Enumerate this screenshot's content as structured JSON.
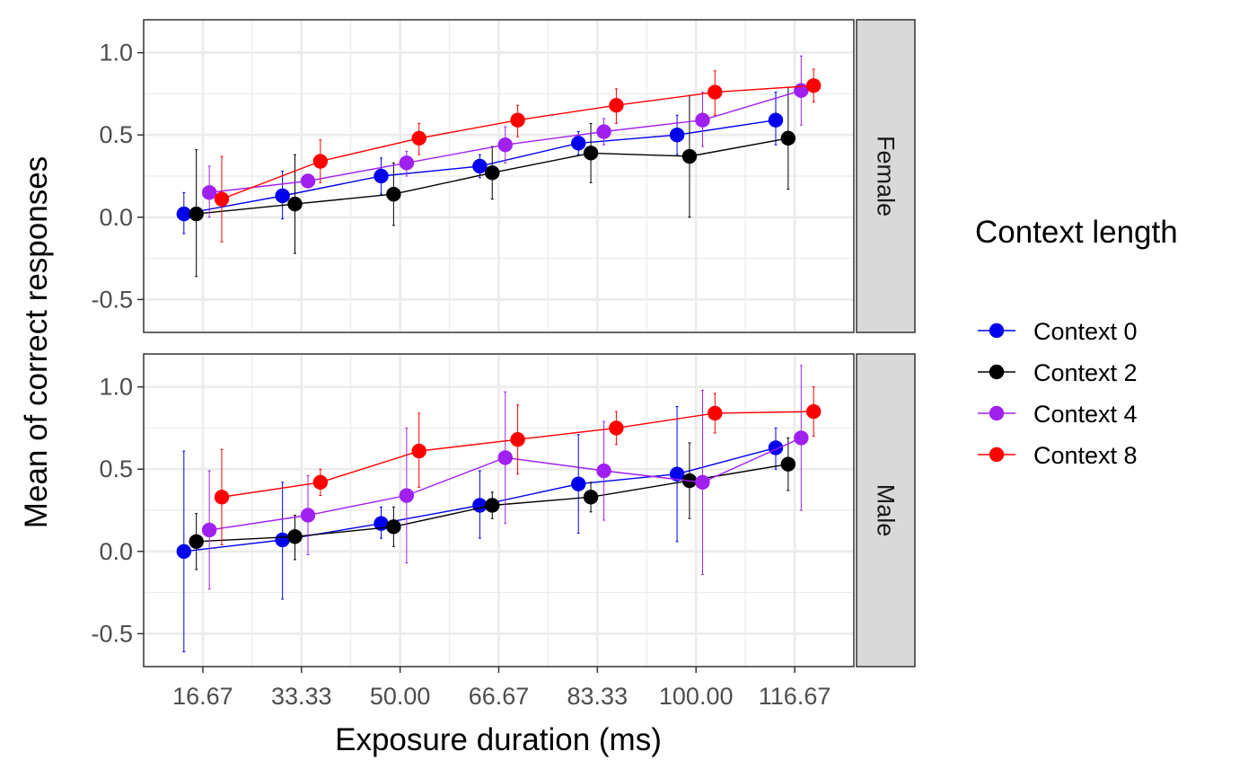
{
  "chart_data": {
    "type": "line",
    "xlabel": "Exposure duration (ms)",
    "ylabel": "Mean of correct responses",
    "x_ticks": [
      "16.67",
      "33.33",
      "50.00",
      "66.67",
      "83.33",
      "100.00",
      "116.67"
    ],
    "x_values": [
      16.67,
      33.33,
      50.0,
      66.67,
      83.33,
      100.0,
      116.67
    ],
    "y_ticks": [
      "-0.5",
      "0.0",
      "0.5",
      "1.0"
    ],
    "ylim": [
      -0.7,
      1.2
    ],
    "xlim": [
      6.67,
      126.67
    ],
    "grid": true,
    "legend": {
      "title": "Context length",
      "placement": "right",
      "entries": [
        "Context 0",
        "Context 2",
        "Context 4",
        "Context 8"
      ]
    },
    "series_colors": {
      "Context 0": "#0000ee",
      "Context 2": "#000000",
      "Context 4": "#a020f0",
      "Context 8": "#ff0000"
    },
    "dodge_ms": [
      -3.2,
      -1.1,
      1.1,
      3.2
    ],
    "panels": [
      {
        "strip": "Female",
        "series": [
          {
            "name": "Context 0",
            "values": [
              0.02,
              0.13,
              0.25,
              0.31,
              0.45,
              0.5,
              0.59
            ],
            "ci_low": [
              -0.1,
              -0.01,
              0.14,
              0.24,
              0.38,
              0.38,
              0.44
            ],
            "ci_high": [
              0.15,
              0.28,
              0.36,
              0.38,
              0.52,
              0.62,
              0.76
            ]
          },
          {
            "name": "Context 2",
            "values": [
              0.02,
              0.08,
              0.14,
              0.27,
              0.39,
              0.37,
              0.48
            ],
            "ci_low": [
              -0.36,
              -0.22,
              -0.05,
              0.11,
              0.21,
              0.0,
              0.17
            ],
            "ci_high": [
              0.41,
              0.38,
              0.33,
              0.43,
              0.57,
              0.74,
              0.79
            ]
          },
          {
            "name": "Context 4",
            "values": [
              0.15,
              0.22,
              0.33,
              0.44,
              0.52,
              0.59,
              0.77
            ],
            "ci_low": [
              0.0,
              0.18,
              0.25,
              0.33,
              0.44,
              0.43,
              0.56
            ],
            "ci_high": [
              0.31,
              0.26,
              0.4,
              0.55,
              0.6,
              0.76,
              0.98
            ]
          },
          {
            "name": "Context 8",
            "values": [
              0.11,
              0.34,
              0.48,
              0.59,
              0.68,
              0.76,
              0.8
            ],
            "ci_low": [
              -0.15,
              0.21,
              0.38,
              0.49,
              0.57,
              0.62,
              0.7
            ],
            "ci_high": [
              0.37,
              0.47,
              0.57,
              0.68,
              0.78,
              0.89,
              0.9
            ]
          }
        ]
      },
      {
        "strip": "Male",
        "series": [
          {
            "name": "Context 0",
            "values": [
              0.0,
              0.07,
              0.17,
              0.28,
              0.41,
              0.47,
              0.63
            ],
            "ci_low": [
              -0.61,
              -0.29,
              0.08,
              0.08,
              0.11,
              0.06,
              0.5
            ],
            "ci_high": [
              0.61,
              0.42,
              0.27,
              0.49,
              0.71,
              0.88,
              0.75
            ]
          },
          {
            "name": "Context 2",
            "values": [
              0.06,
              0.09,
              0.15,
              0.28,
              0.33,
              0.43,
              0.53
            ],
            "ci_low": [
              -0.11,
              -0.05,
              0.03,
              0.2,
              0.24,
              0.2,
              0.37
            ],
            "ci_high": [
              0.23,
              0.22,
              0.27,
              0.36,
              0.42,
              0.66,
              0.69
            ]
          },
          {
            "name": "Context 4",
            "values": [
              0.13,
              0.22,
              0.34,
              0.57,
              0.49,
              0.42,
              0.69
            ],
            "ci_low": [
              -0.23,
              -0.02,
              -0.07,
              0.17,
              0.19,
              -0.14,
              0.25
            ],
            "ci_high": [
              0.49,
              0.46,
              0.75,
              0.97,
              0.79,
              0.98,
              1.13
            ]
          },
          {
            "name": "Context 8",
            "values": [
              0.33,
              0.42,
              0.61,
              0.68,
              0.75,
              0.84,
              0.85
            ],
            "ci_low": [
              0.04,
              0.34,
              0.39,
              0.47,
              0.65,
              0.72,
              0.7
            ],
            "ci_high": [
              0.62,
              0.5,
              0.84,
              0.89,
              0.85,
              0.96,
              1.0
            ]
          }
        ]
      }
    ]
  }
}
